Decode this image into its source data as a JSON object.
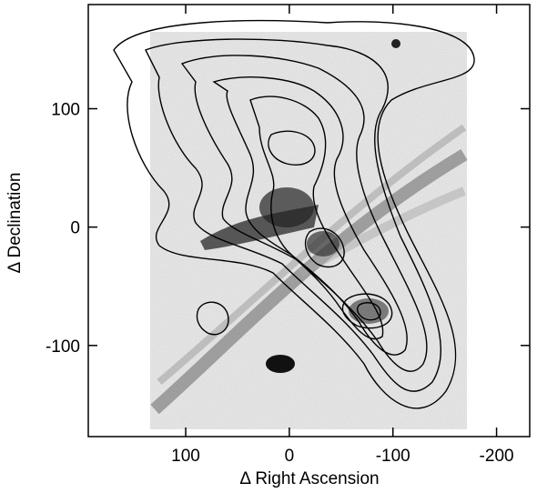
{
  "chart_data": {
    "type": "contour",
    "x_label": "Δ Right Ascension",
    "y_label": "Δ Declination",
    "xlim": [
      194,
      -232
    ],
    "xticks": [
      100,
      0,
      -100,
      -200
    ],
    "ylim": [
      -177,
      188
    ],
    "yticks": [
      100,
      0,
      -100
    ]
  }
}
